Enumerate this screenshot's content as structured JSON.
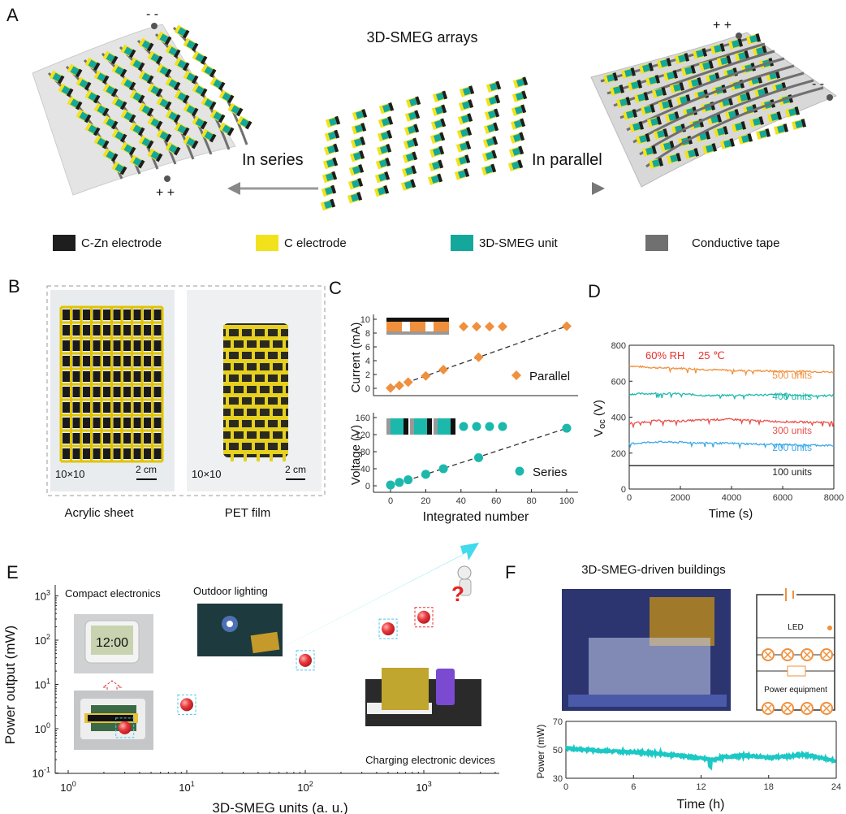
{
  "panels": {
    "A": {
      "label": "A",
      "title": "3D-SMEG arrays",
      "series_label": "In series",
      "parallel_label": "In parallel",
      "left_minus": "- -",
      "left_plus": "+ +",
      "right_plus": "+ +",
      "right_minus": "- -",
      "legend": [
        {
          "label": "C-Zn electrode",
          "color": "#1e1e1e"
        },
        {
          "label": "C electrode",
          "color": "#f2e21c"
        },
        {
          "label": "3D-SMEG unit",
          "color": "#14a89c"
        },
        {
          "label": "Conductive tape",
          "color": "#707070"
        }
      ]
    },
    "B": {
      "label": "B",
      "photos": [
        {
          "caption": "Acrylic sheet",
          "size": "10×10",
          "scale": "2 cm"
        },
        {
          "caption": "PET film",
          "size": "10×10",
          "scale": "2 cm"
        }
      ]
    },
    "C": {
      "label": "C"
    },
    "D": {
      "label": "D",
      "condition_rh": "60% RH",
      "condition_temp": "25 ℃"
    },
    "E": {
      "label": "E",
      "annotations": [
        "Compact electronics",
        "Outdoor lighting",
        "Charging electronic devices"
      ],
      "clock_display": "12:00"
    },
    "F": {
      "label": "F",
      "title": "3D-SMEG-driven buildings",
      "circuit_led": "LED",
      "circuit_power": "Power equipment"
    }
  },
  "chart_data": [
    {
      "id": "C-top",
      "type": "scatter",
      "ylabel": "Current (mA)",
      "xlim": [
        -10,
        107
      ],
      "ylim": [
        0,
        10
      ],
      "yticks": [
        0,
        2,
        4,
        6,
        8,
        10
      ],
      "series": [
        {
          "name": "Parallel",
          "color": "#f0903c",
          "marker": "diamond",
          "x": [
            0,
            5,
            10,
            20,
            30,
            50,
            100
          ],
          "y": [
            0.05,
            0.4,
            0.9,
            1.8,
            2.7,
            4.5,
            9.0
          ]
        }
      ],
      "fit": "dashed-linear",
      "legend_position": "right"
    },
    {
      "id": "C-bottom",
      "type": "scatter",
      "xlabel": "Integrated number",
      "ylabel": "Voltage (V)",
      "xlim": [
        -10,
        107
      ],
      "ylim": [
        0,
        160
      ],
      "xticks": [
        0,
        20,
        40,
        60,
        80,
        100
      ],
      "yticks": [
        0,
        40,
        80,
        120,
        160
      ],
      "series": [
        {
          "name": "Series",
          "color": "#1cb8ac",
          "marker": "circle",
          "x": [
            0,
            5,
            10,
            20,
            30,
            50,
            100
          ],
          "y": [
            2,
            8,
            14,
            27,
            40,
            66,
            135
          ]
        }
      ],
      "fit": "dashed-linear",
      "legend_position": "right"
    },
    {
      "id": "D",
      "type": "line",
      "xlabel": "Time (s)",
      "ylabel": "Voc (V)",
      "xlim": [
        0,
        8000
      ],
      "ylim": [
        0,
        800
      ],
      "xticks": [
        0,
        2000,
        4000,
        6000,
        8000
      ],
      "yticks": [
        0,
        200,
        400,
        600,
        800
      ],
      "x": [
        0,
        1000,
        2000,
        3000,
        4000,
        5000,
        6000,
        7000,
        8000
      ],
      "series": [
        {
          "name": "500 units",
          "color": "#f0903c",
          "values": [
            685,
            675,
            672,
            665,
            660,
            658,
            655,
            655,
            650
          ]
        },
        {
          "name": "400 units",
          "color": "#1cb8ac",
          "values": [
            528,
            532,
            530,
            520,
            522,
            524,
            525,
            520,
            520
          ]
        },
        {
          "name": "300 units",
          "color": "#e8504a",
          "values": [
            365,
            380,
            378,
            385,
            388,
            380,
            375,
            372,
            372
          ]
        },
        {
          "name": "200 units",
          "color": "#3aa8e8",
          "values": [
            252,
            262,
            260,
            256,
            254,
            250,
            248,
            245,
            242
          ]
        },
        {
          "name": "100 units",
          "color": "#222222",
          "values": [
            130,
            130,
            130,
            130,
            130,
            130,
            130,
            130,
            130
          ]
        }
      ]
    },
    {
      "id": "E",
      "type": "scatter",
      "xlabel": "3D-SMEG units (a. u.)",
      "ylabel": "Power output (mW)",
      "xscale": "log",
      "yscale": "log",
      "xlim": [
        0.8,
        4000
      ],
      "ylim": [
        0.1,
        1000
      ],
      "xticks": [
        "10^0",
        "10^1",
        "10^2",
        "10^3"
      ],
      "yticks": [
        "10^-1",
        "10^0",
        "10^1",
        "10^2",
        "10^3"
      ],
      "series": [
        {
          "color": "#e8383c",
          "x": [
            3,
            10,
            100,
            500,
            1000
          ],
          "y": [
            1.05,
            3.5,
            35,
            180,
            330
          ]
        }
      ],
      "trend_arrow_color": "#5ee6f0"
    },
    {
      "id": "F",
      "type": "line",
      "xlabel": "Time (h)",
      "ylabel": "Power (mW)",
      "xlim": [
        0,
        24
      ],
      "ylim": [
        30,
        70
      ],
      "xticks": [
        0,
        6,
        12,
        18,
        24
      ],
      "yticks": [
        30,
        50,
        70
      ],
      "x": [
        0,
        2,
        4,
        6,
        8,
        10,
        12,
        13,
        14,
        16,
        18,
        20,
        21,
        22,
        24
      ],
      "series": [
        {
          "color": "#1cc8c4",
          "values": [
            51,
            50,
            49,
            48.5,
            47.5,
            46,
            44,
            43,
            45,
            46,
            44.5,
            45.5,
            46.5,
            45.5,
            42
          ]
        }
      ]
    }
  ]
}
